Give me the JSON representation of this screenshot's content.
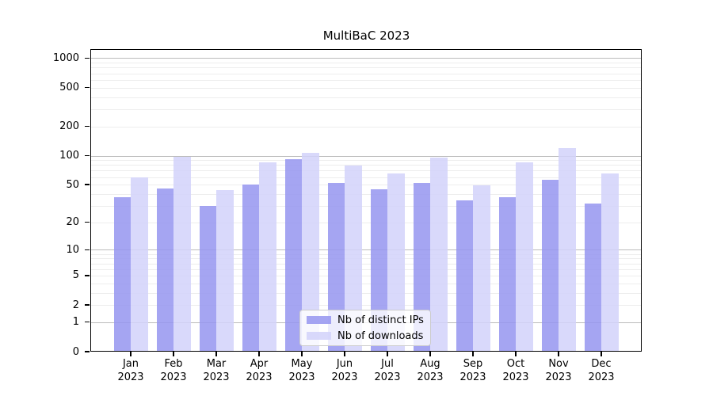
{
  "title": "MultiBaC 2023",
  "colors": {
    "ips_bar": "rgba(149,149,240,0.85)",
    "downloads_bar": "rgba(210,210,250,0.85)",
    "grid_major": "#bbbbbb",
    "grid_minor": "#ededed",
    "axis": "#000000",
    "legend_border": "#cccccc"
  },
  "legend": {
    "items": [
      {
        "label": "Nb of distinct IPs",
        "color": "rgba(149,149,240,0.85)"
      },
      {
        "label": "Nb of downloads",
        "color": "rgba(210,210,250,0.85)"
      }
    ]
  },
  "chart_data": {
    "type": "bar",
    "title": "MultiBaC 2023",
    "categories": [
      "Jan 2023",
      "Feb 2023",
      "Mar 2023",
      "Apr 2023",
      "May 2023",
      "Jun 2023",
      "Jul 2023",
      "Aug 2023",
      "Sep 2023",
      "Oct 2023",
      "Nov 2023",
      "Dec 2023"
    ],
    "series": [
      {
        "name": "Nb of distinct IPs",
        "values": [
          37,
          46,
          30,
          50,
          92,
          52,
          45,
          52,
          34,
          37,
          56,
          32
        ]
      },
      {
        "name": "Nb of downloads",
        "values": [
          60,
          97,
          44,
          86,
          107,
          79,
          65,
          95,
          49,
          85,
          120,
          66
        ]
      }
    ],
    "xlabel": "",
    "ylabel": "",
    "yscale": "log1p",
    "y_ticks": [
      0,
      1,
      2,
      5,
      10,
      20,
      50,
      100,
      200,
      500,
      1000
    ],
    "ylim": [
      0,
      1240
    ],
    "grid": "horizontal",
    "legend_position": "lower center"
  }
}
